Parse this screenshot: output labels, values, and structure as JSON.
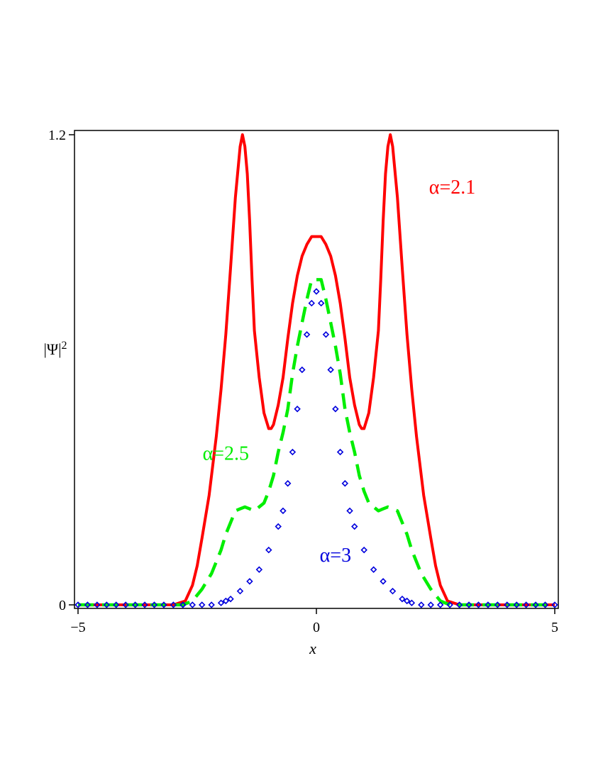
{
  "chart_data": {
    "type": "line",
    "xlabel": "x",
    "ylabel": "|Ψ|",
    "ylabel_sup": "2",
    "xlim": [
      -5,
      5
    ],
    "ylim": [
      0,
      1.2
    ],
    "x_ticks": [
      -5,
      0,
      5
    ],
    "x_tick_labels": [
      "−5",
      "0",
      "5"
    ],
    "y_ticks": [
      0,
      1.2
    ],
    "y_tick_labels": [
      "0",
      "1.2"
    ],
    "grid": false,
    "series": [
      {
        "name": "α=2.1",
        "color": "#ff0000",
        "style": "solid",
        "x": [
          -5,
          -3.4,
          -3.0,
          -2.75,
          -2.6,
          -2.5,
          -2.4,
          -2.25,
          -2.1,
          -2.0,
          -1.9,
          -1.8,
          -1.7,
          -1.6,
          -1.55,
          -1.5,
          -1.45,
          -1.4,
          -1.35,
          -1.3,
          -1.2,
          -1.1,
          -1.0,
          -0.95,
          -0.9,
          -0.8,
          -0.7,
          -0.6,
          -0.5,
          -0.4,
          -0.3,
          -0.2,
          -0.1,
          0.0,
          0.1,
          0.2,
          0.3,
          0.4,
          0.5,
          0.6,
          0.7,
          0.8,
          0.9,
          0.95,
          1.0,
          1.1,
          1.2,
          1.3,
          1.35,
          1.4,
          1.45,
          1.5,
          1.55,
          1.6,
          1.7,
          1.8,
          1.9,
          2.0,
          2.1,
          2.25,
          2.4,
          2.5,
          2.6,
          2.75,
          3.0,
          3.4,
          5
        ],
        "y": [
          0,
          0,
          0,
          0.01,
          0.05,
          0.1,
          0.17,
          0.28,
          0.43,
          0.55,
          0.69,
          0.86,
          1.04,
          1.17,
          1.2,
          1.17,
          1.1,
          0.98,
          0.83,
          0.7,
          0.58,
          0.49,
          0.45,
          0.45,
          0.46,
          0.51,
          0.58,
          0.68,
          0.77,
          0.84,
          0.89,
          0.92,
          0.94,
          0.94,
          0.94,
          0.92,
          0.89,
          0.84,
          0.77,
          0.68,
          0.58,
          0.51,
          0.46,
          0.45,
          0.45,
          0.49,
          0.58,
          0.7,
          0.83,
          0.98,
          1.1,
          1.17,
          1.2,
          1.17,
          1.04,
          0.86,
          0.69,
          0.55,
          0.43,
          0.28,
          0.17,
          0.1,
          0.05,
          0.01,
          0,
          0,
          0
        ]
      },
      {
        "name": "α=2.5",
        "color": "#00ee00",
        "style": "dashed",
        "x": [
          -5,
          -2.8,
          -2.6,
          -2.4,
          -2.2,
          -2.0,
          -1.9,
          -1.8,
          -1.7,
          -1.6,
          -1.5,
          -1.4,
          -1.3,
          -1.2,
          -1.1,
          -1.0,
          -0.9,
          -0.8,
          -0.7,
          -0.6,
          -0.5,
          -0.4,
          -0.3,
          -0.2,
          -0.1,
          0.0,
          0.1,
          0.2,
          0.3,
          0.4,
          0.5,
          0.6,
          0.7,
          0.8,
          0.9,
          1.0,
          1.1,
          1.2,
          1.3,
          1.4,
          1.5,
          1.6,
          1.7,
          1.8,
          1.9,
          2.0,
          2.2,
          2.4,
          2.6,
          2.8,
          5
        ],
        "y": [
          0,
          0,
          0.01,
          0.04,
          0.08,
          0.14,
          0.18,
          0.21,
          0.24,
          0.245,
          0.25,
          0.245,
          0.24,
          0.25,
          0.26,
          0.29,
          0.33,
          0.39,
          0.44,
          0.5,
          0.59,
          0.66,
          0.72,
          0.78,
          0.83,
          0.83,
          0.83,
          0.78,
          0.72,
          0.66,
          0.59,
          0.5,
          0.44,
          0.39,
          0.33,
          0.29,
          0.26,
          0.25,
          0.24,
          0.245,
          0.25,
          0.245,
          0.24,
          0.21,
          0.18,
          0.14,
          0.08,
          0.04,
          0.01,
          0,
          0
        ]
      },
      {
        "name": "α=3",
        "color": "#0000dd",
        "style": "diamonds",
        "x": [
          -5.0,
          -4.8,
          -4.6,
          -4.4,
          -4.2,
          -4.0,
          -3.8,
          -3.6,
          -3.4,
          -3.2,
          -3.0,
          -2.8,
          -2.6,
          -2.4,
          -2.2,
          -2.0,
          -1.9,
          -1.8,
          -1.6,
          -1.4,
          -1.2,
          -1.0,
          -0.8,
          -0.7,
          -0.6,
          -0.5,
          -0.4,
          -0.3,
          -0.2,
          -0.1,
          0.0,
          0.1,
          0.2,
          0.3,
          0.4,
          0.5,
          0.6,
          0.7,
          0.8,
          1.0,
          1.2,
          1.4,
          1.6,
          1.8,
          1.9,
          2.0,
          2.2,
          2.4,
          2.6,
          2.8,
          3.0,
          3.2,
          3.4,
          3.6,
          3.8,
          4.0,
          4.2,
          4.4,
          4.6,
          4.8,
          5.0
        ],
        "y": [
          0,
          0,
          0,
          0,
          0,
          0,
          0,
          0,
          0,
          0,
          0,
          0,
          0,
          0,
          0,
          0.005,
          0.01,
          0.015,
          0.035,
          0.06,
          0.09,
          0.14,
          0.2,
          0.24,
          0.31,
          0.39,
          0.5,
          0.6,
          0.69,
          0.77,
          0.8,
          0.77,
          0.69,
          0.6,
          0.5,
          0.39,
          0.31,
          0.24,
          0.2,
          0.14,
          0.09,
          0.06,
          0.035,
          0.015,
          0.01,
          0.005,
          0,
          0,
          0,
          0,
          0,
          0,
          0,
          0,
          0,
          0,
          0,
          0,
          0,
          0,
          0
        ]
      }
    ],
    "annotations": [
      {
        "text": "α=2.1",
        "color": "#ff0000",
        "x": 2.85,
        "y": 1.05
      },
      {
        "text": "α=2.5",
        "color": "#00ee00",
        "x": -1.9,
        "y": 0.37
      },
      {
        "text": "α=3",
        "color": "#0000dd",
        "x": 0.4,
        "y": 0.11
      }
    ]
  }
}
